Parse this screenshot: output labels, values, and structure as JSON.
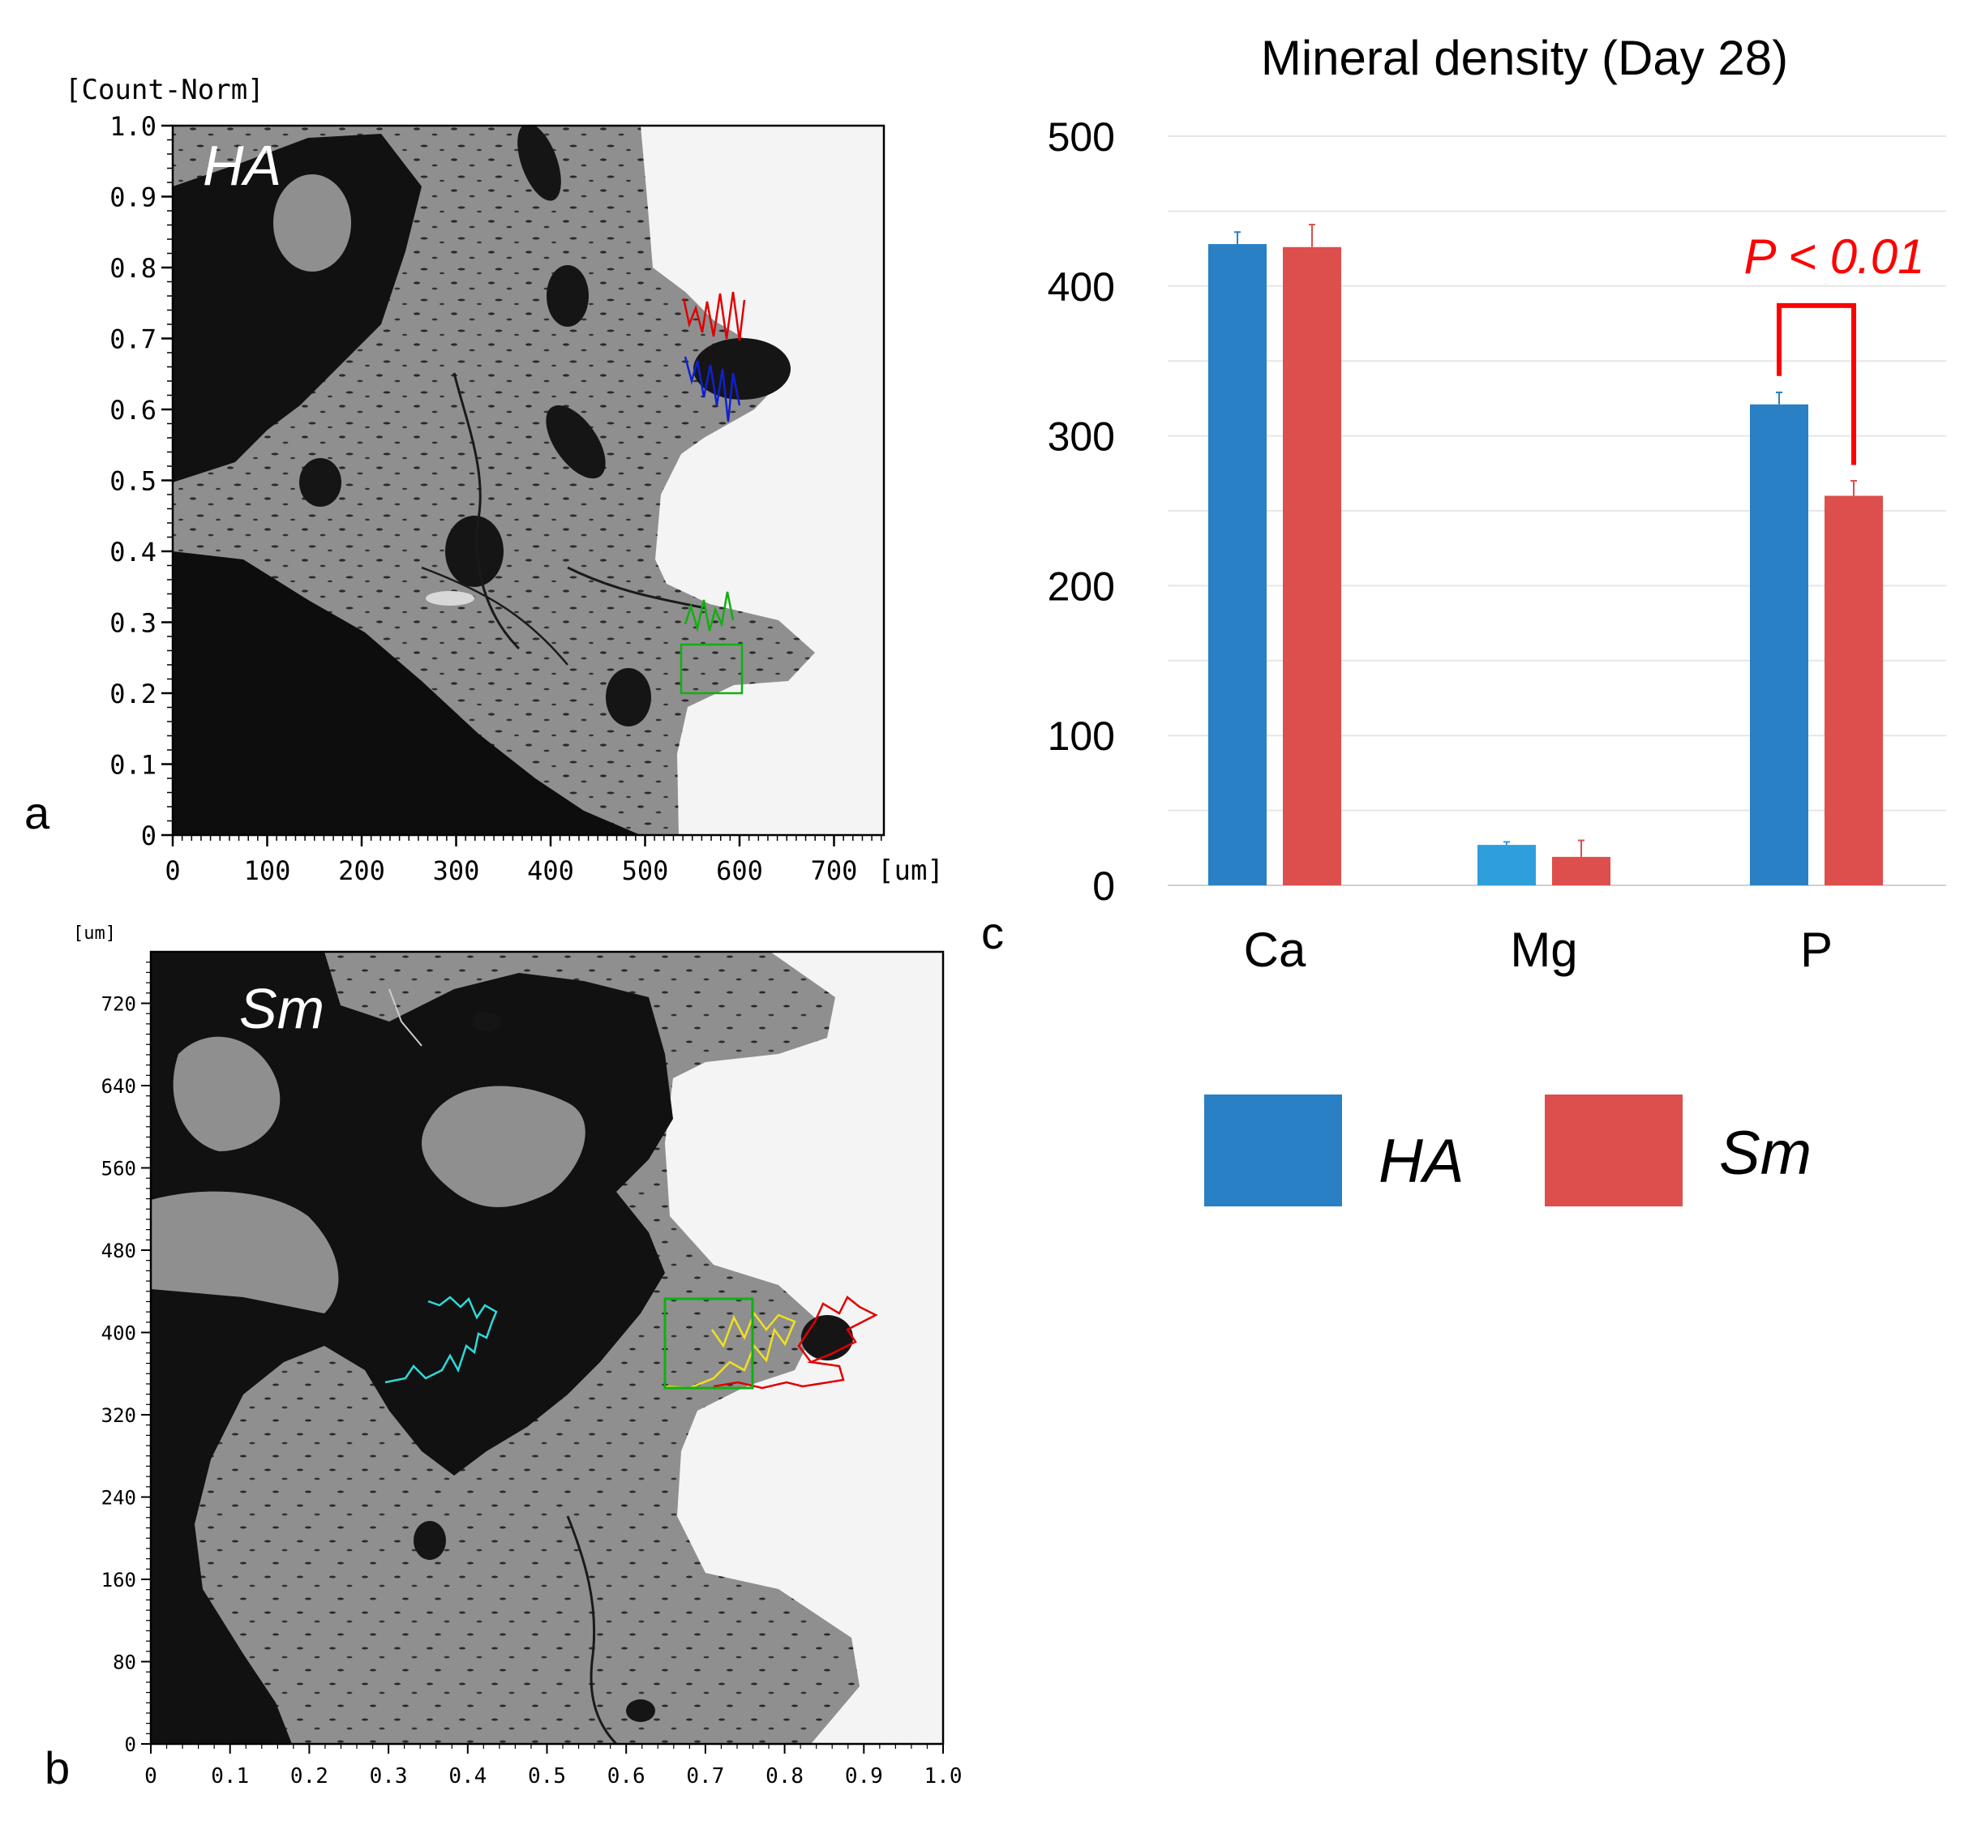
{
  "panels": {
    "a": {
      "panel_label": "a",
      "sample_label": "HA",
      "y_axis_title": "[Count-Norm]",
      "y_ticks": [
        "1.0",
        "0.9",
        "0.8",
        "0.7",
        "0.6",
        "0.5",
        "0.4",
        "0.3",
        "0.2",
        "0.1",
        "0"
      ],
      "x_ticks": [
        "0",
        "100",
        "200",
        "300",
        "400",
        "500",
        "600",
        "700"
      ],
      "x_unit": "[um]",
      "trace_colors": [
        "#e00000",
        "#1020d0",
        "#10b010"
      ]
    },
    "b": {
      "panel_label": "b",
      "sample_label": "Sm",
      "y_axis_title": "[um]",
      "y_ticks": [
        "720",
        "640",
        "560",
        "480",
        "400",
        "320",
        "240",
        "160",
        "80",
        "0"
      ],
      "x_ticks": [
        "0",
        "0.1",
        "0.2",
        "0.3",
        "0.4",
        "0.5",
        "0.6",
        "0.7",
        "0.8",
        "0.9",
        "1.0"
      ],
      "trace_colors": [
        "#30d8d8",
        "#f0e020",
        "#e00000",
        "#10b010"
      ]
    }
  },
  "chart_data": {
    "type": "bar",
    "panel_label": "c",
    "title": "Mineral density (Day 28)",
    "categories": [
      "Ca",
      "Mg",
      "P"
    ],
    "series": [
      {
        "name": "HA",
        "color": "#2980c4",
        "values": [
          428,
          27,
          321
        ],
        "errors": [
          8,
          2,
          8
        ]
      },
      {
        "name": "Sm",
        "color": "#dc4f4c",
        "values": [
          426,
          19,
          260
        ],
        "errors": [
          15,
          11,
          10
        ]
      }
    ],
    "mg_ha_color": "#2e9fdb",
    "ylim": [
      0,
      500
    ],
    "y_ticks": [
      0,
      100,
      200,
      300,
      400,
      500
    ],
    "gridline_step": 50,
    "xlabel": "",
    "ylabel": "",
    "annotation": {
      "text": "P < 0.01",
      "color": "#ff0000",
      "category": "P"
    },
    "legend": [
      {
        "label": "HA",
        "color": "#2980c4"
      },
      {
        "label": "Sm",
        "color": "#dc4f4c"
      }
    ]
  }
}
